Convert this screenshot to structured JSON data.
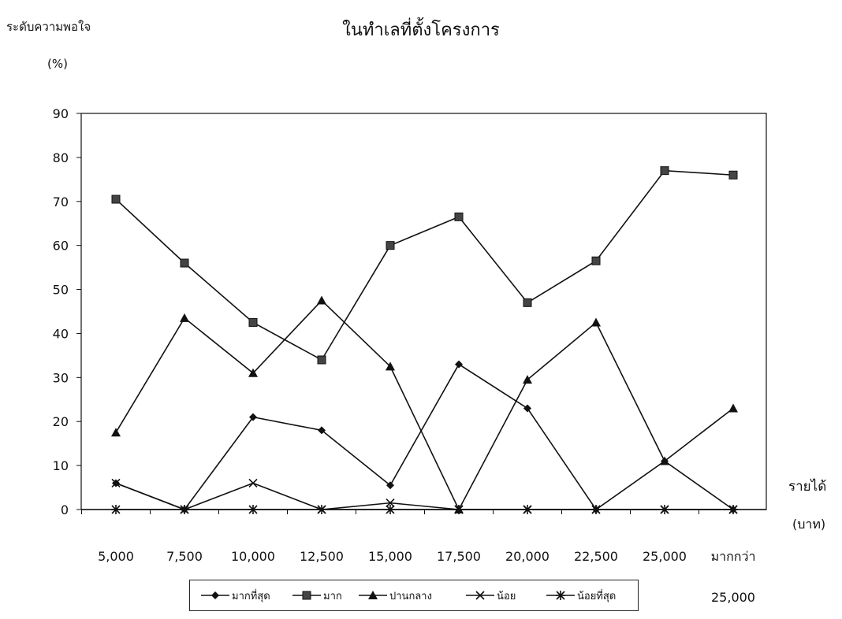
{
  "chart_data": {
    "type": "line",
    "title": "ในทำเลที่ตั้งโครงการ",
    "ylabel": "ระดับความพอใจ",
    "yunit": "(%)",
    "xlabel": "รายได้",
    "xunit": "(บาท)",
    "ylim": [
      0,
      90
    ],
    "yticks": [
      0,
      10,
      20,
      30,
      40,
      50,
      60,
      70,
      80,
      90
    ],
    "categories": [
      "5,000",
      "7,500",
      "10,000",
      "12,500",
      "15,000",
      "17,500",
      "20,000",
      "22,500",
      "25,000",
      "มากกว่า\n25,000"
    ],
    "grid": false,
    "legend_position": "bottom",
    "series": [
      {
        "name": "มากที่สุด",
        "marker": "diamond",
        "values": [
          6,
          0,
          21,
          18,
          5.5,
          33,
          23,
          0,
          11,
          0
        ]
      },
      {
        "name": "มาก",
        "marker": "square",
        "values": [
          70.5,
          56,
          42.5,
          34,
          60,
          66.5,
          47,
          56.5,
          77,
          76
        ]
      },
      {
        "name": "ปานกลาง",
        "marker": "triangle",
        "values": [
          17.5,
          43.5,
          31,
          47.5,
          32.5,
          0,
          29.5,
          42.5,
          11,
          23
        ]
      },
      {
        "name": "น้อย",
        "marker": "x",
        "values": [
          6,
          0,
          6,
          0,
          1.5,
          0,
          0,
          0,
          0,
          0
        ]
      },
      {
        "name": "น้อยที่สุด",
        "marker": "asterisk",
        "values": [
          0,
          0,
          0,
          0,
          0,
          0,
          0,
          0,
          0,
          0
        ]
      }
    ]
  }
}
